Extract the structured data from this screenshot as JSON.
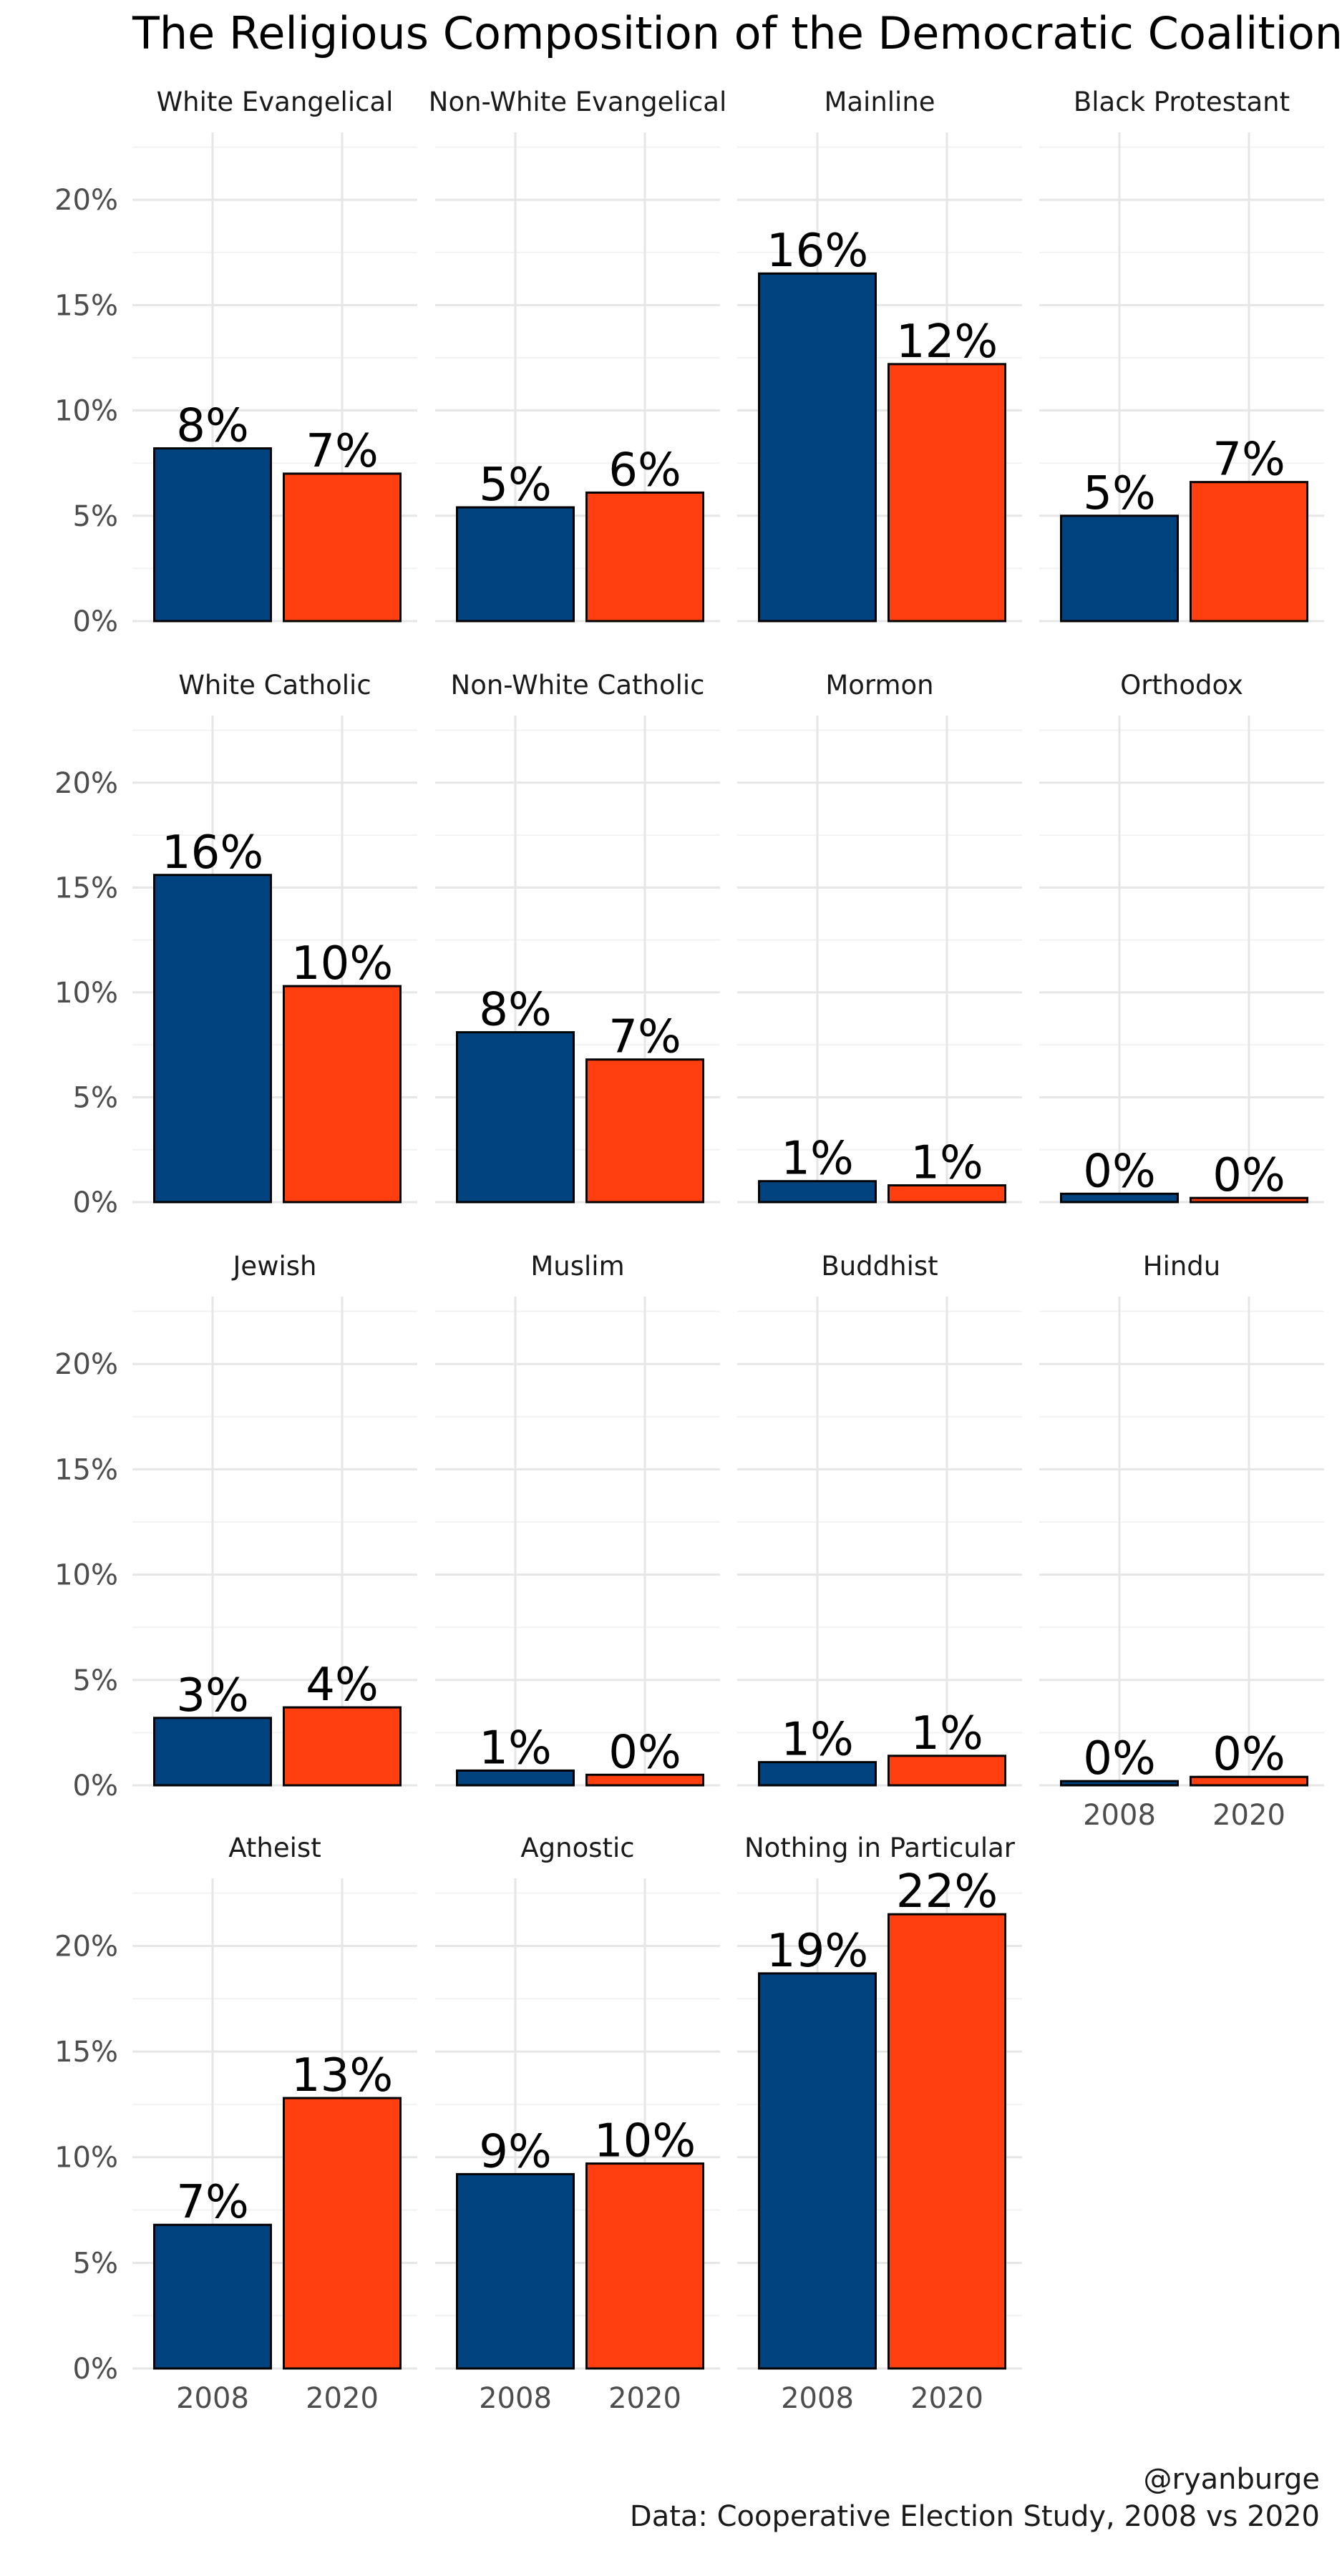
{
  "chart_data": {
    "type": "bar",
    "title": "The Religious Composition of the Democratic Coalition",
    "categories": [
      "2008",
      "2020"
    ],
    "y_ticks": [
      "0%",
      "5%",
      "10%",
      "15%",
      "20%"
    ],
    "ylim": [
      0,
      24
    ],
    "grid": true,
    "legend": "none",
    "colors": {
      "2008": "#00437f",
      "2020": "#ff3f0f"
    },
    "panels": [
      {
        "name": "White Evangelical",
        "values": [
          8.2,
          7.0
        ],
        "labels": [
          "8%",
          "7%"
        ]
      },
      {
        "name": "Non-White Evangelical",
        "values": [
          5.4,
          6.1
        ],
        "labels": [
          "5%",
          "6%"
        ]
      },
      {
        "name": "Mainline",
        "values": [
          16.5,
          12.2
        ],
        "labels": [
          "16%",
          "12%"
        ]
      },
      {
        "name": "Black Protestant",
        "values": [
          5.0,
          6.6
        ],
        "labels": [
          "5%",
          "7%"
        ]
      },
      {
        "name": "White Catholic",
        "values": [
          15.6,
          10.3
        ],
        "labels": [
          "16%",
          "10%"
        ]
      },
      {
        "name": "Non-White Catholic",
        "values": [
          8.1,
          6.8
        ],
        "labels": [
          "8%",
          "7%"
        ]
      },
      {
        "name": "Mormon",
        "values": [
          1.0,
          0.8
        ],
        "labels": [
          "1%",
          "1%"
        ]
      },
      {
        "name": "Orthodox",
        "values": [
          0.4,
          0.2
        ],
        "labels": [
          "0%",
          "0%"
        ]
      },
      {
        "name": "Jewish",
        "values": [
          3.2,
          3.7
        ],
        "labels": [
          "3%",
          "4%"
        ]
      },
      {
        "name": "Muslim",
        "values": [
          0.7,
          0.5
        ],
        "labels": [
          "1%",
          "0%"
        ]
      },
      {
        "name": "Buddhist",
        "values": [
          1.1,
          1.4
        ],
        "labels": [
          "1%",
          "1%"
        ]
      },
      {
        "name": "Hindu",
        "values": [
          0.2,
          0.4
        ],
        "labels": [
          "0%",
          "0%"
        ]
      },
      {
        "name": "Atheist",
        "values": [
          6.8,
          12.8
        ],
        "labels": [
          "7%",
          "13%"
        ]
      },
      {
        "name": "Agnostic",
        "values": [
          9.2,
          9.7
        ],
        "labels": [
          "9%",
          "10%"
        ]
      },
      {
        "name": "Nothing in Particular",
        "values": [
          18.7,
          21.5
        ],
        "labels": [
          "19%",
          "22%"
        ]
      }
    ]
  },
  "caption": {
    "author": "@ryanburge",
    "source": "Data: Cooperative Election Study, 2008 vs 2020"
  }
}
